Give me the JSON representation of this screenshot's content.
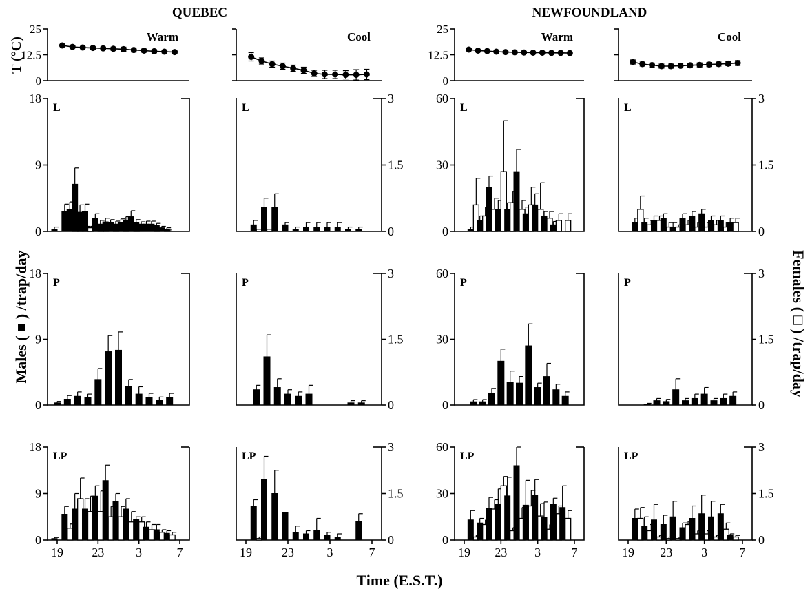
{
  "figure": {
    "regions": [
      "QUEBEC",
      "NEWFOUNDLAND"
    ],
    "xlabel": "Time (E.S.T.)",
    "ylabel_left": "Males ( ■ ) /trap/day",
    "ylabel_right": "Females ( □ ) /trap/day",
    "temp_ylabel": "T (°C)",
    "temp_ticks": [
      "0",
      "12.5",
      "25"
    ],
    "x_ticks": [
      "19",
      "23",
      "3",
      "7"
    ]
  },
  "chart_data": [
    {
      "type": "line",
      "id": "temp-quebec-warm",
      "label": "Warm",
      "ylabel": "T (°C)",
      "ylim": [
        0,
        25
      ],
      "x_hours": [
        19.5,
        20.5,
        21.5,
        22.5,
        23.5,
        0.5,
        1.5,
        2.5,
        3.5,
        4.5,
        5.5,
        6.5
      ],
      "values": [
        17,
        16.3,
        16,
        15.8,
        15.6,
        15.4,
        15.2,
        14.8,
        14.5,
        14.2,
        14,
        13.8
      ],
      "errors": [
        0.5,
        0.6,
        0.5,
        0.6,
        0.7,
        0.8,
        1,
        1,
        0.8,
        0.8,
        0.6,
        0.6
      ]
    },
    {
      "type": "line",
      "id": "temp-quebec-cool",
      "label": "Cool",
      "ylim": [
        0,
        25
      ],
      "x_hours": [
        19.5,
        20.5,
        21.5,
        22.5,
        23.5,
        0.5,
        1.5,
        2.5,
        3.5,
        4.5,
        5.5,
        6.5
      ],
      "values": [
        11.5,
        9.5,
        8,
        7,
        6,
        5,
        3.5,
        3,
        3,
        2.8,
        2.8,
        3
      ],
      "errors": [
        2,
        1.5,
        1.5,
        1.5,
        1.5,
        1.5,
        1.5,
        2,
        2,
        2,
        2.5,
        2.5
      ]
    },
    {
      "type": "line",
      "id": "temp-newfoundland-warm",
      "label": "Warm",
      "ylim": [
        0,
        25
      ],
      "x_hours": [
        19.5,
        20.5,
        21.5,
        22.5,
        23.5,
        0.5,
        1.5,
        2.5,
        3.5,
        4.5,
        5.5,
        6.5
      ],
      "values": [
        15,
        14.5,
        14.3,
        14,
        13.8,
        13.7,
        13.6,
        13.5,
        13.5,
        13.4,
        13.4,
        13.3
      ],
      "errors": [
        0.6,
        0.5,
        0.5,
        0.5,
        0.5,
        0.5,
        0.5,
        0.5,
        0.5,
        0.5,
        0.5,
        0.5
      ]
    },
    {
      "type": "line",
      "id": "temp-newfoundland-cool",
      "label": "Cool",
      "ylim": [
        0,
        25
      ],
      "x_hours": [
        19.5,
        20.5,
        21.5,
        22.5,
        23.5,
        0.5,
        1.5,
        2.5,
        3.5,
        4.5,
        5.5,
        6.5
      ],
      "values": [
        9,
        8,
        7.5,
        7,
        7,
        7.2,
        7.4,
        7.6,
        7.8,
        8,
        8.2,
        8.5
      ],
      "errors": [
        1,
        1,
        1,
        1,
        1,
        1,
        1,
        1,
        1,
        1,
        1,
        1.2
      ]
    },
    {
      "type": "bar",
      "id": "quebec-warm-L",
      "label": "L",
      "ylim": [
        0,
        18
      ],
      "y_ticks": [
        "0",
        "9",
        "18"
      ],
      "x_hours": [
        19,
        20,
        20.5,
        21,
        21.5,
        22,
        23,
        23.5,
        0,
        0.5,
        1,
        1.5,
        2,
        2.5,
        3,
        3.5,
        4,
        4.5,
        5,
        5.5,
        6
      ],
      "males": [
        0.3,
        2.7,
        3,
        6.4,
        2.6,
        2.7,
        1.8,
        1,
        1.3,
        1.2,
        1,
        1.2,
        1.5,
        2,
        1.2,
        1,
        1,
        1,
        0.8,
        0.5,
        0.3
      ],
      "males_err": [
        0.3,
        1,
        1,
        2.2,
        1,
        1,
        0.6,
        0.5,
        0.5,
        0.4,
        0.4,
        0.5,
        0.5,
        0.8,
        0.4,
        0.3,
        0.4,
        0.4,
        0.3,
        0.2,
        0.2
      ],
      "females": [
        0,
        0,
        0.7,
        1.5,
        0.5,
        0.5,
        0.3,
        0.6,
        0,
        0.7,
        0,
        0.3,
        0,
        0.5,
        0,
        0,
        0,
        0.3,
        0,
        0.1,
        0
      ],
      "females_err": [
        0,
        0,
        0.2,
        0.5,
        0.2,
        0.2,
        0.2,
        0.2,
        0,
        0.2,
        0,
        0.1,
        0,
        0.2,
        0,
        0,
        0,
        0.1,
        0,
        0.1,
        0
      ]
    },
    {
      "type": "bar",
      "id": "quebec-cool-L",
      "label": "L",
      "ylim": [
        0,
        3
      ],
      "y_ticks": [
        "0",
        "1.5",
        "3"
      ],
      "x_hours": [
        20,
        21,
        22,
        23,
        0,
        1,
        2,
        3,
        4,
        5,
        6
      ],
      "males": [
        0.15,
        0.55,
        0.55,
        0.15,
        0.05,
        0.1,
        0.1,
        0.1,
        0.1,
        0.05,
        0.05
      ],
      "males_err": [
        0.1,
        0.2,
        0.3,
        0.05,
        0.05,
        0.1,
        0.1,
        0.1,
        0.1,
        0.05,
        0.05
      ],
      "females": [
        0.05,
        0.05,
        0,
        0,
        0,
        0,
        0,
        0,
        0,
        0,
        0
      ],
      "females_err": [
        0,
        0,
        0,
        0,
        0,
        0,
        0,
        0,
        0,
        0,
        0
      ]
    },
    {
      "type": "bar",
      "id": "newfoundland-warm-L",
      "label": "L",
      "ylim": [
        0,
        60
      ],
      "y_ticks": [
        "0",
        "30",
        "60"
      ],
      "x_hours": [
        20,
        21,
        22,
        23,
        0,
        1,
        2,
        3,
        4,
        5,
        6
      ],
      "males": [
        1,
        5,
        20,
        10,
        10,
        27,
        8,
        12,
        7,
        3,
        0
      ],
      "males_err": [
        1,
        2,
        5,
        4,
        3,
        10,
        3,
        5,
        2,
        1.5,
        0
      ],
      "females": [
        12,
        7,
        10,
        27,
        13,
        10,
        12,
        10,
        6,
        5,
        5
      ],
      "females_err": [
        12,
        4,
        5,
        23,
        5,
        4,
        8,
        12,
        3,
        3,
        3
      ]
    },
    {
      "type": "bar",
      "id": "newfoundland-cool-L",
      "label": "L",
      "ylim": [
        0,
        3
      ],
      "y_ticks": [
        "0",
        "1.5",
        "3"
      ],
      "x_hours": [
        20,
        21,
        22,
        23,
        0,
        1,
        2,
        3,
        4,
        5,
        6
      ],
      "males": [
        0.2,
        0.2,
        0.25,
        0.3,
        0.1,
        0.3,
        0.35,
        0.4,
        0.25,
        0.25,
        0.2
      ],
      "males_err": [
        0.1,
        0.1,
        0.1,
        0.1,
        0.1,
        0.1,
        0.1,
        0.1,
        0.1,
        0.1,
        0.1
      ],
      "females": [
        0.5,
        0.15,
        0.25,
        0.1,
        0.1,
        0.15,
        0.1,
        0.1,
        0.15,
        0.1,
        0.2
      ],
      "females_err": [
        0.3,
        0.1,
        0.1,
        0.1,
        0.05,
        0.1,
        0.1,
        0.1,
        0.1,
        0.1,
        0.1
      ]
    },
    {
      "type": "bar",
      "id": "quebec-warm-P",
      "label": "P",
      "ylim": [
        0,
        18
      ],
      "y_ticks": [
        "0",
        "9",
        "18"
      ],
      "x_hours": [
        19,
        20,
        21,
        22,
        23,
        0,
        1,
        2,
        3,
        4,
        5,
        6
      ],
      "males": [
        0.3,
        0.8,
        1.2,
        1,
        3.5,
        7.3,
        7.5,
        2.5,
        1.5,
        1,
        0.7,
        1
      ],
      "males_err": [
        0.2,
        0.5,
        0.6,
        0.5,
        1.5,
        2.2,
        2.5,
        1,
        1,
        0.6,
        0.4,
        0.6
      ]
    },
    {
      "type": "bar",
      "id": "quebec-cool-P",
      "label": "P",
      "ylim": [
        0,
        3
      ],
      "y_ticks": [
        "0",
        "1.5",
        "3"
      ],
      "x_hours": [
        20,
        21,
        22,
        23,
        0,
        1,
        5,
        6
      ],
      "males": [
        0.35,
        1.1,
        0.4,
        0.25,
        0.2,
        0.25,
        0.05,
        0.05
      ],
      "males_err": [
        0.1,
        0.5,
        0.2,
        0.1,
        0.1,
        0.2,
        0.05,
        0.05
      ]
    },
    {
      "type": "bar",
      "id": "newfoundland-warm-P",
      "label": "P",
      "ylim": [
        0,
        60
      ],
      "y_ticks": [
        "0",
        "30",
        "60"
      ],
      "x_hours": [
        20,
        21,
        22,
        23,
        0,
        1,
        2,
        3,
        4,
        5,
        6
      ],
      "males": [
        1.5,
        1.5,
        5.5,
        20,
        10.5,
        10,
        27,
        8,
        13,
        7,
        4
      ],
      "males_err": [
        1,
        1,
        2,
        5.5,
        5,
        3,
        10,
        2,
        6,
        2.5,
        2
      ]
    },
    {
      "type": "bar",
      "id": "newfoundland-cool-P",
      "label": "P",
      "ylim": [
        0,
        3
      ],
      "y_ticks": [
        "0",
        "1.5",
        "3"
      ],
      "x_hours": [
        21,
        22,
        23,
        0,
        1,
        2,
        3,
        4,
        5,
        6
      ],
      "males": [
        0.02,
        0.1,
        0.08,
        0.35,
        0.1,
        0.15,
        0.25,
        0.1,
        0.15,
        0.2
      ],
      "males_err": [
        0.02,
        0.05,
        0.05,
        0.25,
        0.05,
        0.1,
        0.15,
        0.05,
        0.1,
        0.1
      ]
    },
    {
      "type": "bar",
      "id": "quebec-warm-LP",
      "label": "LP",
      "ylim": [
        0,
        18
      ],
      "y_ticks": [
        "0",
        "9",
        "18"
      ],
      "x_hours": [
        19,
        20,
        21,
        22,
        23,
        0,
        1,
        2,
        3,
        4,
        5,
        6
      ],
      "males": [
        0.3,
        5,
        6,
        6,
        8.5,
        11.5,
        7.5,
        6,
        4,
        2.5,
        2,
        1.3
      ],
      "males_err": [
        0.2,
        1.5,
        3,
        2,
        2,
        3,
        1.5,
        2,
        0.5,
        1,
        1,
        0.5
      ],
      "females": [
        0,
        2.3,
        8,
        5.5,
        5.5,
        4.5,
        4.5,
        3.5,
        3.5,
        2,
        1.5,
        1
      ],
      "females_err": [
        0,
        0.8,
        4,
        3,
        4,
        2,
        2,
        2,
        1,
        1,
        0.5,
        0.5
      ]
    },
    {
      "type": "bar",
      "id": "quebec-cool-LP",
      "label": "LP",
      "ylim": [
        0,
        3
      ],
      "y_ticks": [
        "0",
        "1.5",
        "3"
      ],
      "x_hours": [
        20,
        21,
        22,
        23,
        0,
        1,
        2,
        3,
        4,
        5,
        6
      ],
      "males": [
        1.1,
        1.95,
        1.5,
        0.9,
        0.25,
        0.2,
        0.3,
        0.15,
        0.1,
        0,
        0.6
      ],
      "males_err": [
        0.2,
        0.75,
        0.75,
        0,
        0.2,
        0.1,
        0.4,
        0.1,
        0.1,
        0,
        0.25
      ],
      "females": [
        0.05,
        0,
        0,
        0,
        0,
        0,
        0,
        0,
        0,
        0,
        0
      ],
      "females_err": [
        0.05,
        0,
        0,
        0,
        0,
        0,
        0,
        0,
        0,
        0,
        0
      ]
    },
    {
      "type": "bar",
      "id": "newfoundland-warm-LP",
      "label": "LP",
      "ylim": [
        0,
        60
      ],
      "y_ticks": [
        "0",
        "30",
        "60"
      ],
      "x_hours": [
        20,
        21,
        22,
        23,
        0,
        1,
        2,
        3,
        4,
        5,
        6
      ],
      "males": [
        13,
        11,
        20.5,
        23,
        28.5,
        48,
        22.5,
        29,
        14.5,
        23,
        21
      ],
      "males_err": [
        6,
        3,
        7,
        10,
        12,
        12,
        16,
        10,
        10,
        4,
        14
      ],
      "females": [
        2,
        10,
        20,
        35,
        6,
        14,
        22,
        15.5,
        7,
        17,
        14
      ],
      "females_err": [
        1,
        3,
        6,
        6,
        2,
        7,
        10,
        8,
        3,
        5,
        5
      ]
    },
    {
      "type": "bar",
      "id": "newfoundland-cool-LP",
      "label": "LP",
      "ylim": [
        0,
        3
      ],
      "y_ticks": [
        "0",
        "1.5",
        "3"
      ],
      "x_hours": [
        20,
        21,
        22,
        23,
        0,
        1,
        2,
        3,
        4,
        5,
        6
      ],
      "males": [
        0.7,
        0.45,
        0.65,
        0.5,
        0.75,
        0.4,
        0.7,
        0.85,
        0.75,
        0.85,
        0.15
      ],
      "males_err": [
        0.3,
        0.3,
        0.5,
        0.3,
        0.5,
        0.15,
        0.4,
        0.6,
        0.5,
        0.3,
        0.05
      ],
      "females": [
        0.7,
        0.3,
        0.1,
        0.05,
        0.05,
        0.5,
        0.2,
        0.2,
        0.1,
        0.35,
        0.1
      ],
      "females_err": [
        0.35,
        0.2,
        0.05,
        0.05,
        0.02,
        0.1,
        0.1,
        0.1,
        0.05,
        0.2,
        0.05
      ]
    }
  ]
}
